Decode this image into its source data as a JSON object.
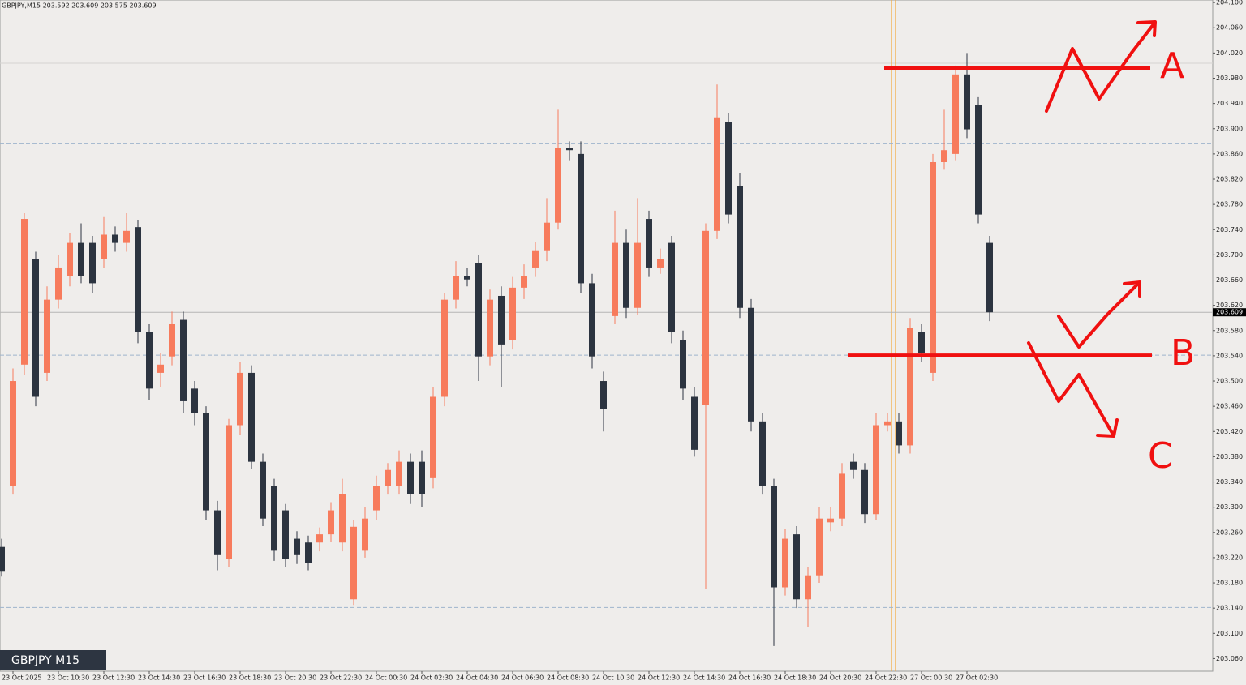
{
  "chart_data": {
    "type": "candlestick",
    "header": "GBPJPY,M15  203.592 203.609 203.575 203.609",
    "symbol_badge": "GBPJPY M15",
    "ylim": [
      203.04,
      204.104
    ],
    "yticks": [
      {
        "value": 203.06,
        "label": "203.060"
      },
      {
        "value": 203.1,
        "label": "203.100"
      },
      {
        "value": 203.14,
        "label": "203.140"
      },
      {
        "value": 203.18,
        "label": "203.180"
      },
      {
        "value": 203.22,
        "label": "203.220"
      },
      {
        "value": 203.26,
        "label": "203.260"
      },
      {
        "value": 203.3,
        "label": "203.300"
      },
      {
        "value": 203.34,
        "label": "203.340"
      },
      {
        "value": 203.38,
        "label": "203.380"
      },
      {
        "value": 203.42,
        "label": "203.420"
      },
      {
        "value": 203.46,
        "label": "203.460"
      },
      {
        "value": 203.5,
        "label": "203.500"
      },
      {
        "value": 203.54,
        "label": "203.540"
      },
      {
        "value": 203.58,
        "label": "203.580"
      },
      {
        "value": 203.62,
        "label": "203.620"
      },
      {
        "value": 203.66,
        "label": "203.660"
      },
      {
        "value": 203.7,
        "label": "203.700"
      },
      {
        "value": 203.74,
        "label": "203.740"
      },
      {
        "value": 203.78,
        "label": "203.780"
      },
      {
        "value": 203.82,
        "label": "203.820"
      },
      {
        "value": 203.86,
        "label": "203.860"
      },
      {
        "value": 203.9,
        "label": "203.900"
      },
      {
        "value": 203.94,
        "label": "203.940"
      },
      {
        "value": 203.98,
        "label": "203.980"
      },
      {
        "value": 204.02,
        "label": "204.020"
      },
      {
        "value": 204.06,
        "label": "204.060"
      },
      {
        "value": 204.1,
        "label": "204.100"
      }
    ],
    "current_price": 203.609,
    "levels": [
      203.876,
      203.541,
      203.141
    ],
    "bull_color": "#f77b5c",
    "bear_color": "#2c3440",
    "categories": [
      null,
      "23 Oct 2025",
      null,
      null,
      null,
      "23 Oct 10:30",
      null,
      null,
      null,
      "23 Oct 12:30",
      null,
      null,
      null,
      "23 Oct 14:30",
      null,
      null,
      null,
      "23 Oct 16:30",
      null,
      null,
      null,
      "23 Oct 18:30",
      null,
      null,
      null,
      "23 Oct 20:30",
      null,
      null,
      null,
      "23 Oct 22:30",
      null,
      null,
      null,
      "24 Oct 00:30",
      null,
      null,
      null,
      "24 Oct 02:30",
      null,
      null,
      null,
      "24 Oct 04:30",
      null,
      null,
      null,
      "24 Oct 06:30",
      null,
      null,
      null,
      "24 Oct 08:30",
      null,
      null,
      null,
      "24 Oct 10:30",
      null,
      null,
      null,
      "24 Oct 12:30",
      null,
      null,
      null,
      "24 Oct 14:30",
      null,
      null,
      null,
      "24 Oct 16:30",
      null,
      null,
      null,
      "24 Oct 18:30",
      null,
      null,
      null,
      "24 Oct 20:30",
      null,
      null,
      null,
      "24 Oct 22:30",
      null,
      null,
      null,
      "27 Oct 00:30",
      null,
      null,
      null,
      "27 Oct 02:30",
      null,
      null
    ],
    "open": [
      203.237,
      203.334,
      203.526,
      203.693,
      203.513,
      203.629,
      203.667,
      203.719,
      203.719,
      203.693,
      203.732,
      203.719,
      203.744,
      203.578,
      203.513,
      203.539,
      203.597,
      203.488,
      203.449,
      203.295,
      203.218,
      203.43,
      203.513,
      203.372,
      203.334,
      203.295,
      203.25,
      203.244,
      203.244,
      203.257,
      203.244,
      203.154,
      203.231,
      203.295,
      203.334,
      203.334,
      203.372,
      203.372,
      203.346,
      203.475,
      203.629,
      203.667,
      203.687,
      203.539,
      203.635,
      203.565,
      203.648,
      203.68,
      203.706,
      203.751,
      203.869,
      203.86,
      203.655,
      203.5,
      203.603,
      203.719,
      203.616,
      203.757,
      203.68,
      203.719,
      203.565,
      203.475,
      203.462,
      203.738,
      203.911,
      203.809,
      203.616,
      203.436,
      203.334,
      203.173,
      203.257,
      203.154,
      203.192,
      203.276,
      203.282,
      203.372,
      203.359,
      203.289,
      203.43,
      203.436,
      203.398,
      203.578,
      203.513,
      203.847,
      203.86,
      203.986,
      203.937,
      203.719
    ],
    "high": [
      203.25,
      203.52,
      203.766,
      203.705,
      203.65,
      203.7,
      203.735,
      203.75,
      203.73,
      203.76,
      203.745,
      203.766,
      203.755,
      203.59,
      203.545,
      203.61,
      203.61,
      203.5,
      203.46,
      203.31,
      203.44,
      203.53,
      203.525,
      203.385,
      203.345,
      203.305,
      203.262,
      203.255,
      203.268,
      203.308,
      203.345,
      203.28,
      203.3,
      203.35,
      203.37,
      203.39,
      203.385,
      203.39,
      203.49,
      203.64,
      203.69,
      203.68,
      203.7,
      203.645,
      203.65,
      203.665,
      203.685,
      203.72,
      203.79,
      203.93,
      203.88,
      203.88,
      203.67,
      203.515,
      203.77,
      203.74,
      203.79,
      203.77,
      203.71,
      203.73,
      203.58,
      203.49,
      203.75,
      203.97,
      203.925,
      203.83,
      203.63,
      203.45,
      203.345,
      203.265,
      203.27,
      203.205,
      203.3,
      203.3,
      203.37,
      203.385,
      203.37,
      203.45,
      203.45,
      203.45,
      203.6,
      203.59,
      203.86,
      203.93,
      204.0,
      204.02,
      203.95,
      203.73
    ],
    "low": [
      203.19,
      203.32,
      203.51,
      203.46,
      203.5,
      203.615,
      203.65,
      203.655,
      203.64,
      203.68,
      203.705,
      203.705,
      203.56,
      203.47,
      203.49,
      203.525,
      203.45,
      203.43,
      203.28,
      203.2,
      203.205,
      203.415,
      203.36,
      203.27,
      203.215,
      203.205,
      203.21,
      203.2,
      203.23,
      203.245,
      203.23,
      203.145,
      203.22,
      203.28,
      203.32,
      203.32,
      203.305,
      203.3,
      203.33,
      203.46,
      203.615,
      203.65,
      203.5,
      203.525,
      203.49,
      203.55,
      203.63,
      203.665,
      203.69,
      203.74,
      203.85,
      203.64,
      203.52,
      203.42,
      203.59,
      203.6,
      203.605,
      203.665,
      203.67,
      203.56,
      203.47,
      203.38,
      203.17,
      203.725,
      203.75,
      203.6,
      203.42,
      203.32,
      203.08,
      203.16,
      203.14,
      203.11,
      203.18,
      203.262,
      203.27,
      203.345,
      203.275,
      203.28,
      203.42,
      203.385,
      203.385,
      203.53,
      203.5,
      203.835,
      203.85,
      203.885,
      203.75,
      203.595
    ],
    "close": [
      203.199,
      203.5,
      203.757,
      203.475,
      203.629,
      203.68,
      203.719,
      203.667,
      203.655,
      203.732,
      203.719,
      203.738,
      203.578,
      203.488,
      203.526,
      203.59,
      203.468,
      203.449,
      203.295,
      203.224,
      203.43,
      203.513,
      203.372,
      203.282,
      203.231,
      203.218,
      203.224,
      203.212,
      203.257,
      203.295,
      203.321,
      203.269,
      203.282,
      203.334,
      203.359,
      203.372,
      203.321,
      203.321,
      203.475,
      203.629,
      203.667,
      203.661,
      203.539,
      203.629,
      203.558,
      203.648,
      203.667,
      203.706,
      203.751,
      203.869,
      203.866,
      203.655,
      203.539,
      203.456,
      203.719,
      203.616,
      203.719,
      203.68,
      203.693,
      203.578,
      203.488,
      203.391,
      203.738,
      203.918,
      203.764,
      203.616,
      203.436,
      203.334,
      203.173,
      203.25,
      203.154,
      203.192,
      203.282,
      203.282,
      203.353,
      203.359,
      203.289,
      203.43,
      203.436,
      203.398,
      203.584,
      203.545,
      203.847,
      203.866,
      203.986,
      203.899,
      203.764,
      203.609
    ],
    "annotations": [
      {
        "text": "A",
        "value": 203.996
      },
      {
        "text": "B",
        "value": 203.541
      },
      {
        "text": "C"
      }
    ]
  }
}
